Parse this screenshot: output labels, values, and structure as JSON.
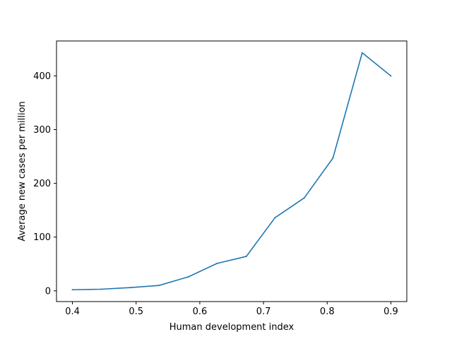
{
  "chart_data": {
    "type": "line",
    "title": "",
    "xlabel": "Human development index",
    "ylabel": "Average new cases per million",
    "xlim": [
      0.375,
      0.925
    ],
    "ylim": [
      -20,
      465
    ],
    "xticks": [
      0.4,
      0.5,
      0.6,
      0.7,
      0.8,
      0.9
    ],
    "xtick_labels": [
      "0.4",
      "0.5",
      "0.6",
      "0.7",
      "0.8",
      "0.9"
    ],
    "yticks": [
      0,
      100,
      200,
      300,
      400
    ],
    "ytick_labels": [
      "0",
      "100",
      "200",
      "300",
      "400"
    ],
    "grid": false,
    "legend": "none",
    "line_color": "#1f77b4",
    "series": [
      {
        "x": [
          0.4,
          0.445,
          0.491,
          0.536,
          0.582,
          0.627,
          0.673,
          0.718,
          0.764,
          0.809,
          0.855,
          0.9
        ],
        "y": [
          2,
          3,
          6,
          10,
          26,
          51,
          64,
          136,
          173,
          247,
          443,
          400
        ]
      }
    ]
  }
}
